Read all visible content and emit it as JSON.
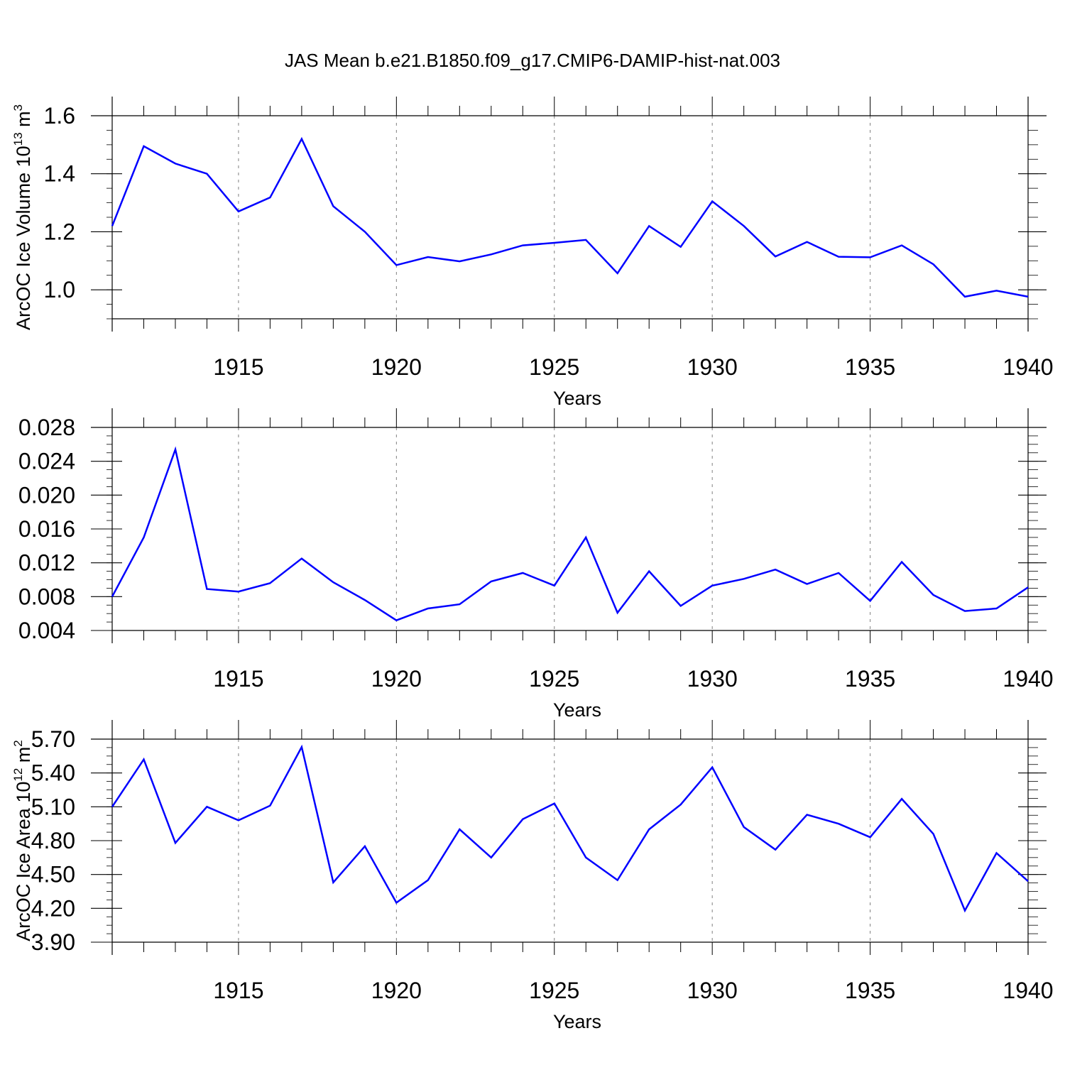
{
  "figure": {
    "title": "JAS Mean b.e21.B1850.f09_g17.CMIP6-DAMIP-hist-nat.003",
    "line_color": "#0000ff",
    "frame_color": "#000000",
    "grid_color": "#808080"
  },
  "chart_data": [
    {
      "type": "line",
      "title": "",
      "xlabel": "Years",
      "ylabel": "ArcOC Ice Volume 10",
      "ylabel_sup": "13",
      "ylabel_unit": " m",
      "ylabel_unit_sup": "3",
      "xlim": [
        1911,
        1940
      ],
      "ylim": [
        0.9,
        1.6
      ],
      "x_ticks": [
        1915,
        1920,
        1925,
        1930,
        1935,
        1940
      ],
      "x_tick_labels": [
        "1915",
        "1920",
        "1925",
        "1930",
        "1935",
        "1940"
      ],
      "y_ticks": [
        1.0,
        1.2,
        1.4,
        1.6
      ],
      "y_tick_labels": [
        "1.0",
        "1.2",
        "1.4",
        "1.6"
      ],
      "y_minor_step": 0.05,
      "x_grid": true,
      "x": [
        1911,
        1912,
        1913,
        1914,
        1915,
        1916,
        1917,
        1918,
        1919,
        1920,
        1921,
        1922,
        1923,
        1924,
        1925,
        1926,
        1927,
        1928,
        1929,
        1930,
        1931,
        1932,
        1933,
        1934,
        1935,
        1936,
        1937,
        1938,
        1939,
        1940
      ],
      "series": [
        {
          "values": [
            1.22,
            1.495,
            1.435,
            1.4,
            1.27,
            1.318,
            1.52,
            1.288,
            1.2,
            1.085,
            1.113,
            1.098,
            1.122,
            1.153,
            1.162,
            1.172,
            1.057,
            1.22,
            1.148,
            1.305,
            1.22,
            1.115,
            1.165,
            1.114,
            1.112,
            1.153,
            1.088,
            0.976,
            0.997,
            0.976
          ]
        }
      ]
    },
    {
      "type": "line",
      "title": "",
      "xlabel": "Years",
      "ylabel": "",
      "ylabel_sup": "",
      "ylabel_unit": "",
      "ylabel_unit_sup": "",
      "xlim": [
        1911,
        1940
      ],
      "ylim": [
        0.004,
        0.028
      ],
      "x_ticks": [
        1915,
        1920,
        1925,
        1930,
        1935,
        1940
      ],
      "x_tick_labels": [
        "1915",
        "1920",
        "1925",
        "1930",
        "1935",
        "1940"
      ],
      "y_ticks": [
        0.004,
        0.008,
        0.012,
        0.016,
        0.02,
        0.024,
        0.028
      ],
      "y_tick_labels": [
        "0.004",
        "0.008",
        "0.012",
        "0.016",
        "0.020",
        "0.024",
        "0.028"
      ],
      "y_minor_step": 0.001,
      "x_grid": true,
      "x": [
        1911,
        1912,
        1913,
        1914,
        1915,
        1916,
        1917,
        1918,
        1919,
        1920,
        1921,
        1922,
        1923,
        1924,
        1925,
        1926,
        1927,
        1928,
        1929,
        1930,
        1931,
        1932,
        1933,
        1934,
        1935,
        1936,
        1937,
        1938,
        1939,
        1940
      ],
      "series": [
        {
          "values": [
            0.008,
            0.015,
            0.0254,
            0.0089,
            0.0086,
            0.0096,
            0.0125,
            0.0097,
            0.0076,
            0.0052,
            0.0066,
            0.0071,
            0.0098,
            0.0108,
            0.0093,
            0.015,
            0.0061,
            0.011,
            0.0069,
            0.0093,
            0.0101,
            0.0112,
            0.0095,
            0.0108,
            0.0075,
            0.0121,
            0.0082,
            0.0063,
            0.0066,
            0.0091
          ]
        }
      ]
    },
    {
      "type": "line",
      "title": "",
      "xlabel": "Years",
      "ylabel": "ArcOC Ice Area 10",
      "ylabel_sup": "12",
      "ylabel_unit": " m",
      "ylabel_unit_sup": "2",
      "xlim": [
        1911,
        1940
      ],
      "ylim": [
        3.9,
        5.7
      ],
      "x_ticks": [
        1915,
        1920,
        1925,
        1930,
        1935,
        1940
      ],
      "x_tick_labels": [
        "1915",
        "1920",
        "1925",
        "1930",
        "1935",
        "1940"
      ],
      "y_ticks": [
        3.9,
        4.2,
        4.5,
        4.8,
        5.1,
        5.4,
        5.7
      ],
      "y_tick_labels": [
        "3.90",
        "4.20",
        "4.50",
        "4.80",
        "5.10",
        "5.40",
        "5.70"
      ],
      "y_minor_step": 0.075,
      "x_grid": true,
      "x": [
        1911,
        1912,
        1913,
        1914,
        1915,
        1916,
        1917,
        1918,
        1919,
        1920,
        1921,
        1922,
        1923,
        1924,
        1925,
        1926,
        1927,
        1928,
        1929,
        1930,
        1931,
        1932,
        1933,
        1934,
        1935,
        1936,
        1937,
        1938,
        1939,
        1940
      ],
      "series": [
        {
          "values": [
            5.1,
            5.52,
            4.78,
            5.1,
            4.98,
            5.11,
            5.63,
            4.43,
            4.75,
            4.25,
            4.45,
            4.9,
            4.65,
            4.99,
            5.13,
            4.65,
            4.45,
            4.9,
            5.12,
            5.45,
            4.92,
            4.72,
            5.03,
            4.95,
            4.83,
            5.17,
            4.86,
            4.18,
            4.69,
            4.44
          ]
        }
      ]
    }
  ]
}
